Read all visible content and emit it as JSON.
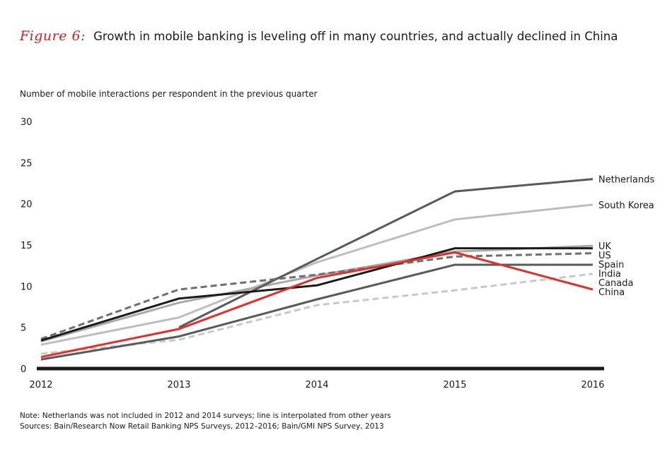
{
  "figure_label": "Figure 6:",
  "figure_title": "Growth in mobile banking is leveling off in many countries, and actually declined in China",
  "subtitle": "Number of mobile interactions per respondent in the previous quarter",
  "notes": {
    "note": "Note: Netherlands was not included in 2012 and 2014 surveys; line is interpolated from other years",
    "sources": "Sources: Bain/Research Now Retail Banking NPS Surveys, 2012–2016; Bain/GMI NPS Survey, 2013"
  },
  "chart_data": {
    "type": "line",
    "title": "Growth in mobile banking is leveling off in many countries, and actually declined in China",
    "xlabel": "",
    "ylabel": "Number of mobile interactions per respondent in the previous quarter",
    "x": [
      "2012",
      "2013",
      "2014",
      "2015",
      "2016"
    ],
    "ylim": [
      0,
      30
    ],
    "yticks": [
      0,
      5,
      10,
      15,
      20,
      25,
      30
    ],
    "grid": false,
    "series": [
      {
        "name": "Netherlands",
        "values": [
          null,
          5.0,
          13.3,
          21.5,
          23.0
        ],
        "color": "#58595b",
        "dashed": false
      },
      {
        "name": "South Korea",
        "values": [
          2.9,
          6.2,
          12.9,
          18.1,
          19.9
        ],
        "color": "#bcbdc0",
        "dashed": false
      },
      {
        "name": "UK",
        "values": [
          3.3,
          8.0,
          11.3,
          14.2,
          14.9
        ],
        "color": "#a7a9ac",
        "dashed": false
      },
      {
        "name": "US",
        "values": [
          3.4,
          8.5,
          10.1,
          14.6,
          14.6
        ],
        "color": "#1a1a1a",
        "dashed": false
      },
      {
        "name": "Spain",
        "values": [
          3.6,
          9.6,
          11.4,
          13.6,
          14.0
        ],
        "color": "#6d6e71",
        "dashed": true
      },
      {
        "name": "India",
        "values": [
          1.1,
          3.9,
          8.4,
          12.6,
          12.6
        ],
        "color": "#58595b",
        "dashed": false
      },
      {
        "name": "Canada",
        "values": [
          1.8,
          3.5,
          7.7,
          9.5,
          11.5
        ],
        "color": "#c7c8ca",
        "dashed": true
      },
      {
        "name": "China",
        "values": [
          1.4,
          4.8,
          11.0,
          14.1,
          9.6
        ],
        "color": "#e0302b",
        "dashed": false
      }
    ]
  }
}
